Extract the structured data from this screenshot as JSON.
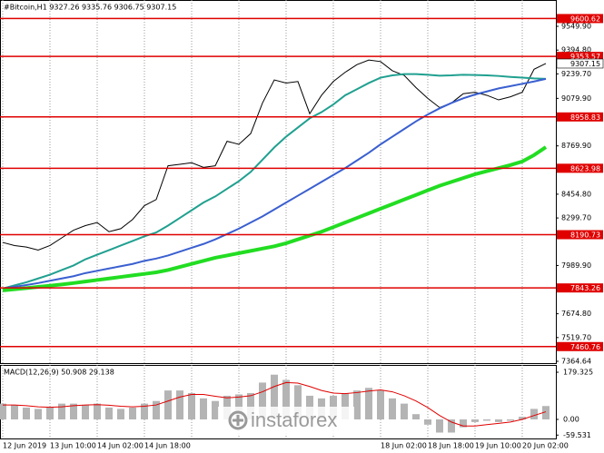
{
  "chart_data": [
    {
      "type": "line",
      "title": "#Bitcoin,H1  9327.26 9335.76 9306.75 9307.15",
      "categories": [
        "12 Jun 2019",
        null,
        null,
        null,
        "13 Jun 10:00",
        null,
        null,
        null,
        "14 Jun 02:00",
        null,
        null,
        null,
        "14 Jun 18:00",
        null,
        null,
        null,
        null,
        null,
        null,
        null,
        null,
        null,
        null,
        null,
        null,
        null,
        null,
        null,
        null,
        null,
        null,
        null,
        "18 Jun 02:00",
        null,
        null,
        null,
        "18 Jun 18:00",
        null,
        null,
        null,
        "19 Jun 10:00",
        null,
        null,
        null,
        "20 Jun 02:00",
        null,
        null
      ],
      "series": [
        {
          "color": "#000000",
          "values": [
            8140,
            8120,
            8110,
            8090,
            8120,
            8170,
            8220,
            8250,
            8270,
            8210,
            8230,
            8290,
            8380,
            8420,
            8640,
            8650,
            8660,
            8630,
            8640,
            8800,
            8780,
            8850,
            9050,
            9200,
            9180,
            9190,
            8980,
            9100,
            9190,
            9250,
            9300,
            9330,
            9320,
            9260,
            9230,
            9150,
            9080,
            9020,
            9050,
            9110,
            9120,
            9100,
            9070,
            9090,
            9120,
            9270,
            9307.15
          ]
        },
        {
          "color": "#20a090",
          "values": [
            7839,
            7860,
            7880,
            7905,
            7930,
            7960,
            7990,
            8030,
            8060,
            8090,
            8120,
            8150,
            8180,
            8205,
            8250,
            8300,
            8350,
            8400,
            8440,
            8490,
            8540,
            8600,
            8680,
            8760,
            8830,
            8890,
            8950,
            8990,
            9040,
            9100,
            9140,
            9180,
            9215,
            9230,
            9238,
            9238,
            9234,
            9228,
            9230,
            9234,
            9232,
            9230,
            9226,
            9220,
            9215,
            9210,
            9207
          ]
        },
        {
          "color": "#3a5fd0",
          "values": [
            7839,
            7850,
            7862,
            7875,
            7890,
            7905,
            7920,
            7940,
            7955,
            7970,
            7985,
            8000,
            8020,
            8035,
            8055,
            8080,
            8105,
            8130,
            8160,
            8195,
            8230,
            8270,
            8310,
            8355,
            8400,
            8445,
            8490,
            8535,
            8580,
            8625,
            8675,
            8725,
            8780,
            8830,
            8880,
            8930,
            8975,
            9015,
            9050,
            9080,
            9105,
            9125,
            9145,
            9160,
            9175,
            9190,
            9207
          ]
        },
        {
          "color": "#22dd22",
          "values": [
            7827,
            7835,
            7842,
            7850,
            7858,
            7866,
            7875,
            7885,
            7895,
            7905,
            7915,
            7925,
            7935,
            7945,
            7960,
            7980,
            8000,
            8020,
            8040,
            8055,
            8070,
            8085,
            8100,
            8115,
            8135,
            8160,
            8185,
            8210,
            8240,
            8270,
            8300,
            8330,
            8360,
            8390,
            8420,
            8450,
            8480,
            8510,
            8535,
            8560,
            8585,
            8605,
            8625,
            8645,
            8668,
            8710,
            8762
          ]
        }
      ],
      "levels": [
        9600.62,
        9353.57,
        8958.83,
        8623.98,
        8190.73,
        7843.26,
        7460.76
      ],
      "level_color": "#e00000",
      "ylim": [
        7352.8,
        9721.6
      ],
      "yticks": [
        {
          "value": 9549.9,
          "label": "9549.90"
        },
        {
          "value": 9394.8,
          "label": "9394.80"
        },
        {
          "value": 9239.7,
          "label": "9239.70"
        },
        {
          "value": 9079.9,
          "label": "9079.90"
        },
        {
          "value": 8769.9,
          "label": "8769.90"
        },
        {
          "value": 8454.8,
          "label": "8454.80"
        },
        {
          "value": 8299.7,
          "label": "8299.70"
        },
        {
          "value": 7989.9,
          "label": "7989.90"
        },
        {
          "value": 7674.8,
          "label": "7674.80"
        },
        {
          "value": 7519.7,
          "label": "7519.70"
        },
        7364.64
      ],
      "grid": true,
      "watermark": "instaforex"
    },
    {
      "type": "bar",
      "title": "MACD(12,26,9) 50.908 29.138",
      "values": [
        60,
        55,
        45,
        40,
        45,
        60,
        60,
        55,
        60,
        45,
        40,
        45,
        60,
        70,
        110,
        110,
        100,
        80,
        70,
        90,
        95,
        100,
        140,
        170,
        150,
        130,
        90,
        80,
        90,
        100,
        110,
        120,
        110,
        80,
        60,
        20,
        -20,
        -50,
        -50,
        -30,
        -10,
        -5,
        -10,
        -5,
        10,
        40,
        50.908
      ],
      "color": "#b4b4b4",
      "signal": {
        "color": "#e00000",
        "values": [
          55,
          55,
          52,
          48,
          46,
          48,
          52,
          55,
          56,
          54,
          50,
          48,
          50,
          55,
          70,
          85,
          95,
          95,
          88,
          82,
          85,
          90,
          105,
          125,
          140,
          138,
          125,
          110,
          100,
          98,
          102,
          108,
          112,
          105,
          90,
          70,
          45,
          15,
          -10,
          -25,
          -25,
          -20,
          -15,
          -10,
          0,
          15,
          29.138
        ]
      },
      "ylim": [
        -72.4,
        207
      ],
      "yticks": [
        179.325,
        {
          "value": 0,
          "label": "0.00"
        },
        -59.531
      ]
    }
  ]
}
